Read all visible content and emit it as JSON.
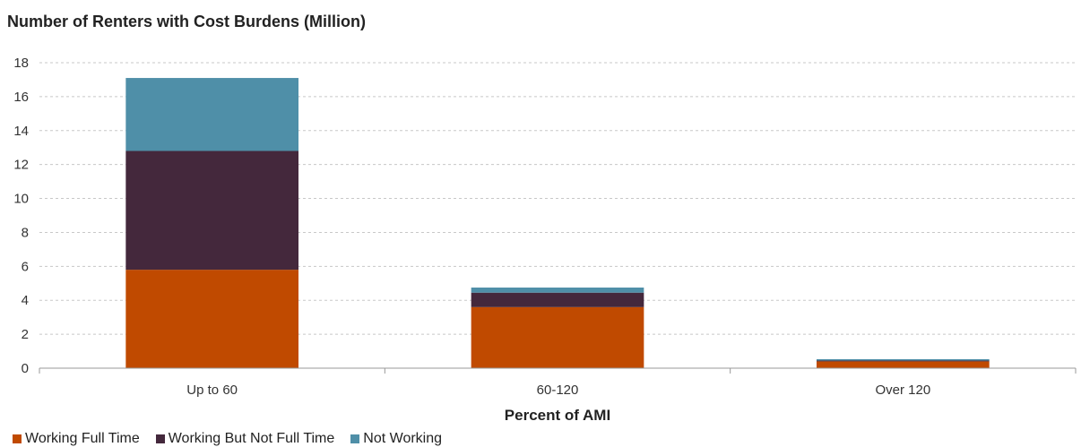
{
  "chart_data": {
    "type": "bar",
    "stacked": true,
    "title": "Number of Renters with Cost Burdens (Million)",
    "xlabel": "Percent of AMI",
    "ylabel": "",
    "ylim": [
      0,
      18
    ],
    "yticks": [
      0,
      2,
      4,
      6,
      8,
      10,
      12,
      14,
      16,
      18
    ],
    "grid": true,
    "legend_position": "bottom-left",
    "categories": [
      "Up to 60",
      "60-120",
      "Over 120"
    ],
    "series": [
      {
        "name": "Working Full Time",
        "color": "#c04a00",
        "values": [
          5.8,
          3.6,
          0.4
        ]
      },
      {
        "name": "Working But Not Full Time",
        "color": "#44283c",
        "values": [
          7.0,
          0.85,
          0.05
        ]
      },
      {
        "name": "Not Working",
        "color": "#4f8fa8",
        "values": [
          4.3,
          0.3,
          0.08
        ]
      }
    ]
  }
}
